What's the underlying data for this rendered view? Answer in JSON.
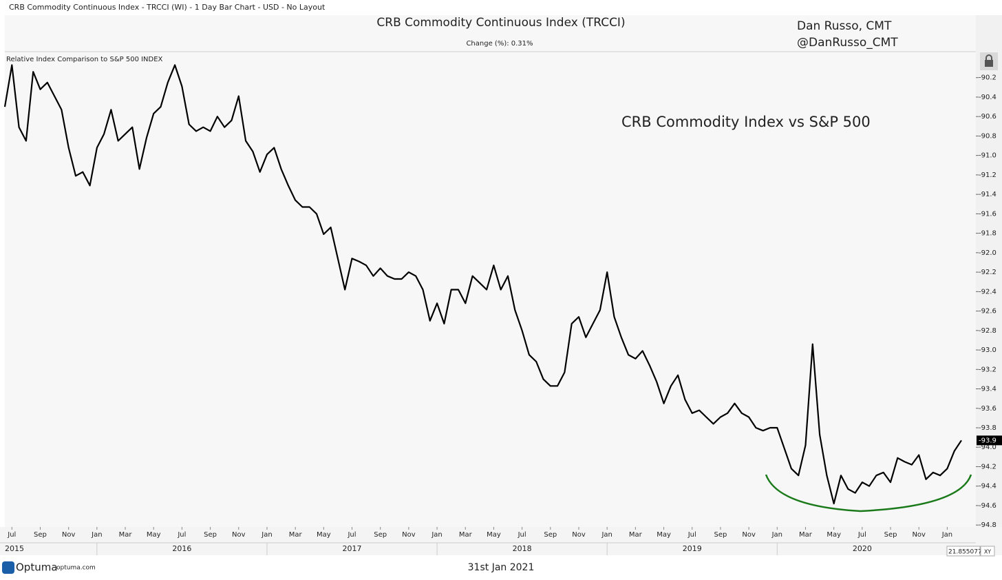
{
  "header": "CRB Commodity Continuous Index - TRCCI (WI) - 1 Day Bar Chart - USD - No Layout",
  "chart_data": {
    "type": "line",
    "title": "CRB Commodity Continuous Index (TRCCI)",
    "subtitle": "Change (%): 0.31%",
    "author": "Dan Russo, CMT",
    "handle": "@DanRusso_CMT",
    "annotation": "CRB Commodity Index vs S&P 500",
    "panel_label": "Relative Index Comparison to S&P 500 INDEX",
    "color": "#000000",
    "categories": [
      null,
      "Jul",
      null,
      null,
      null,
      "Sep",
      null,
      null,
      null,
      "Nov",
      null,
      null,
      null,
      "Jan",
      null,
      null,
      null,
      "Mar",
      null,
      null,
      null,
      "May",
      null,
      null,
      null,
      "Jul",
      null,
      null,
      null,
      "Sep",
      null,
      null,
      null,
      "Nov",
      null,
      null,
      null,
      "Jan",
      null,
      null,
      null,
      "Mar",
      null,
      null,
      null,
      "May",
      null,
      null,
      null,
      "Jul",
      null,
      null,
      null,
      "Sep",
      null,
      null,
      null,
      "Nov",
      null,
      null,
      null,
      "Jan",
      null,
      null,
      null,
      "Mar",
      null,
      null,
      null,
      "May",
      null,
      null,
      null,
      "Jul",
      null,
      null,
      null,
      "Sep",
      null,
      null,
      null,
      "Nov",
      null,
      null,
      null,
      "Jan",
      null,
      null,
      null,
      "Mar",
      null,
      null,
      null,
      "May",
      null,
      null,
      null,
      "Jul",
      null,
      null,
      null,
      "Sep",
      null,
      null,
      null,
      "Nov",
      null,
      null,
      null,
      "Jan",
      null,
      null,
      null,
      "Mar",
      null,
      null,
      null,
      "May",
      null,
      null,
      null,
      "Jul",
      null,
      null,
      null,
      "Sep",
      null,
      null,
      null,
      "Nov",
      null,
      null,
      null,
      "Jan",
      null,
      null
    ],
    "values": [
      -90.5,
      -90.07,
      -90.71,
      -90.85,
      -90.14,
      -90.32,
      -90.25,
      -90.39,
      -90.53,
      -90.92,
      -91.21,
      -91.17,
      -91.31,
      -90.92,
      -90.78,
      -90.53,
      -90.85,
      -90.78,
      -90.71,
      -91.14,
      -90.82,
      -90.57,
      -90.5,
      -90.25,
      -90.07,
      -90.29,
      -90.68,
      -90.75,
      -90.71,
      -90.75,
      -90.6,
      -90.71,
      -90.64,
      -90.39,
      -90.85,
      -90.96,
      -91.17,
      -90.99,
      -90.92,
      -91.14,
      -91.31,
      -91.46,
      -91.53,
      -91.53,
      -91.6,
      -91.81,
      -91.74,
      -92.06,
      -92.38,
      -92.06,
      -92.09,
      -92.13,
      -92.24,
      -92.16,
      -92.24,
      -92.27,
      -92.27,
      -92.2,
      -92.24,
      -92.38,
      -92.7,
      -92.52,
      -92.73,
      -92.38,
      -92.38,
      -92.52,
      -92.24,
      -92.31,
      -92.38,
      -92.13,
      -92.38,
      -92.24,
      -92.59,
      -92.8,
      -93.05,
      -93.12,
      -93.3,
      -93.37,
      -93.37,
      -93.23,
      -92.73,
      -92.66,
      -92.87,
      -92.73,
      -92.59,
      -92.2,
      -92.66,
      -92.87,
      -93.05,
      -93.09,
      -93.01,
      -93.16,
      -93.33,
      -93.55,
      -93.37,
      -93.26,
      -93.51,
      -93.65,
      -93.62,
      -93.69,
      -93.76,
      -93.69,
      -93.65,
      -93.55,
      -93.65,
      -93.69,
      -93.8,
      -93.83,
      -93.8,
      -93.8,
      -94.01,
      -94.22,
      -94.29,
      -93.98,
      -92.94,
      -93.87,
      -94.29,
      -94.58,
      -94.29,
      -94.43,
      -94.47,
      -94.36,
      -94.4,
      -94.29,
      -94.26,
      -94.36,
      -94.11,
      -94.15,
      -94.18,
      -94.08,
      -94.33,
      -94.26,
      -94.29,
      -94.22,
      -94.04,
      -93.93
    ],
    "value_labels": [
      null,
      null,
      null,
      null,
      null,
      null,
      null,
      null,
      null,
      null,
      null,
      null,
      null,
      null,
      null,
      null,
      null,
      null,
      null,
      null,
      null,
      null,
      null,
      null,
      null,
      null,
      null,
      null,
      null,
      null,
      null,
      null,
      null,
      null,
      null,
      null,
      null,
      null,
      null,
      null,
      null,
      null,
      null,
      null,
      null,
      null,
      null,
      null,
      null,
      null,
      null,
      null,
      null,
      null,
      null,
      null,
      null,
      null,
      null,
      null,
      null,
      null,
      null,
      null,
      null,
      null,
      null,
      null,
      null,
      null,
      null,
      null,
      null,
      null,
      null,
      null,
      null,
      null,
      null,
      null,
      null,
      null,
      null,
      null,
      null,
      null,
      null,
      null,
      null,
      null,
      null,
      null,
      null,
      null,
      null,
      null,
      null,
      null,
      null,
      null,
      null,
      null,
      null,
      null,
      null,
      null,
      null,
      null,
      null,
      null,
      null,
      null,
      null,
      null,
      null,
      null,
      null,
      null,
      null,
      null,
      null,
      null,
      null,
      null,
      null,
      null,
      null,
      null,
      null,
      null,
      null,
      null,
      null,
      null,
      null,
      "-93.9"
    ],
    "years": [
      "2015",
      "2016",
      "2017",
      "2018",
      "2019",
      "2020"
    ],
    "ylim": [
      -94.82,
      -89.94
    ],
    "yticks": [
      -90.2,
      -90.4,
      -90.6,
      -90.8,
      {
        "value": -91,
        "label": "-91.0"
      },
      -91.2,
      -91.4,
      -91.6,
      -91.8,
      {
        "value": -92,
        "label": "-92.0"
      },
      -92.2,
      -92.4,
      -92.6,
      -92.8,
      {
        "value": -93,
        "label": "-93.0"
      },
      -93.2,
      -93.4,
      -93.6,
      -93.8,
      {
        "value": -94,
        "label": "-94.0"
      },
      -94.2,
      -94.4,
      -94.6,
      -94.8
    ],
    "grid": false
  },
  "footer": {
    "brand": "Optuma",
    "site": "optuma.com",
    "date": "31st Jan 2021",
    "readout": "21.855077",
    "mode": "XY"
  }
}
